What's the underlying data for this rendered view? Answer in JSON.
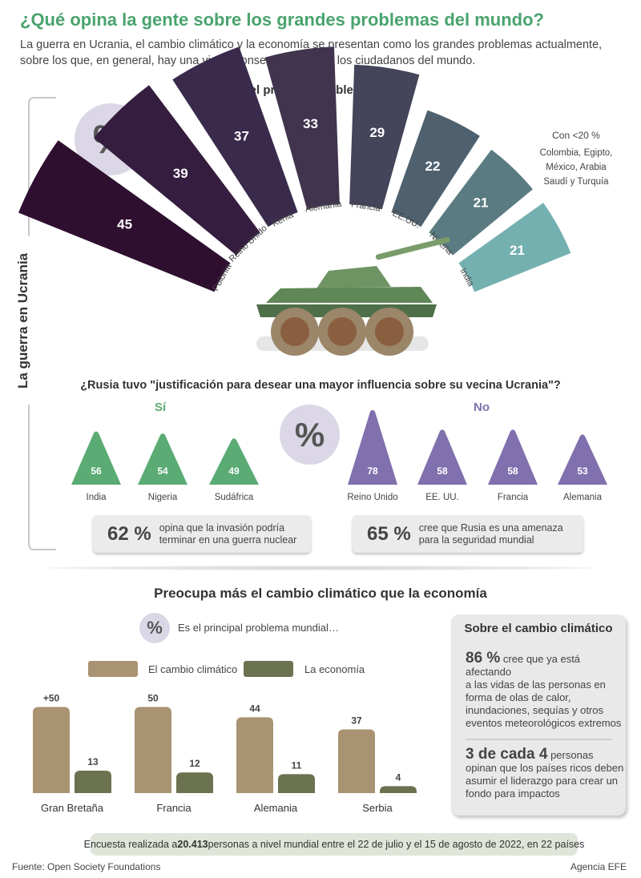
{
  "header": {
    "title": "¿Qué opina la gente sobre los grandes problemas del mundo?",
    "subtitle": "La guerra en Ucrania, el cambio climático y la economía se presentan como los grandes problemas actualmente, sobre los que, en general, hay una visión consensuada entre los ciudadanos del mundo."
  },
  "side_label": "La guerra en Ucrania",
  "percent_symbol": "%",
  "colors": {
    "title": "#4aa36e",
    "si": "#5aab74",
    "no": "#8070ad",
    "climate": "#a99373",
    "economy": "#6b7250",
    "tank_body": "#5f8757",
    "tank_wheel": "#9b8669"
  },
  "chart_data": [
    {
      "type": "bar",
      "title": "Es el principal problema global",
      "categories": [
        "Polonia",
        "Reino Unido",
        "Kenia",
        "Alemania",
        "Francia",
        "EE.UU.",
        "Nigeria",
        "India"
      ],
      "values": [
        45,
        39,
        37,
        33,
        29,
        22,
        21,
        21
      ],
      "colors": [
        "#2f0f30",
        "#341d3e",
        "#3a2b4c",
        "#41344f",
        "#44445a",
        "#4f616e",
        "#5b7b82",
        "#75b0b0"
      ],
      "note_title": "Con <20 %",
      "note_lines": [
        "Colombia, Egipto,",
        "México, Arabia",
        "Saudí y Turquía"
      ]
    },
    {
      "type": "bar",
      "title": "¿Rusia tuvo \"justificación para desear una mayor influencia sobre su vecina Ucrania\"?",
      "groups": [
        {
          "name": "Sí",
          "categories": [
            "India",
            "Nigeria",
            "Sudáfrica"
          ],
          "values": [
            56,
            54,
            49
          ]
        },
        {
          "name": "No",
          "categories": [
            "Reino Unido",
            "EE. UU.",
            "Francia",
            "Alemania"
          ],
          "values": [
            78,
            58,
            58,
            53
          ]
        }
      ]
    },
    {
      "type": "bar",
      "title": "Preocupa más el cambio climático que la economía",
      "subtitle": "Es el principal problema mundial…",
      "categories": [
        "Gran Bretaña",
        "Francia",
        "Alemania",
        "Serbia"
      ],
      "series": [
        {
          "name": "El cambio climático",
          "values": [
            50,
            50,
            44,
            37
          ],
          "labels": [
            "+50",
            "50",
            "44",
            "37"
          ]
        },
        {
          "name": "La economía",
          "values": [
            13,
            12,
            11,
            4
          ],
          "labels": [
            "13",
            "12",
            "11",
            "4"
          ]
        }
      ]
    }
  ],
  "stats": {
    "nuclear": {
      "value": "62 %",
      "text_line1": "opina que la invasión podría",
      "text_line2": "terminar en una guerra nuclear"
    },
    "threat": {
      "value": "65 %",
      "text_line1": "cree que Rusia es una amenaza",
      "text_line2": "para la seguridad mundial"
    }
  },
  "climate_box": {
    "title": "Sobre el cambio climático",
    "item1_value": "86 %",
    "item1_text_a": " cree que ya está afectando",
    "item1_lines": [
      "a las vidas de las personas en",
      "forma de olas de calor,",
      "inundaciones, sequías y otros",
      "eventos meteorológicos extremos"
    ],
    "item2_value": "3 de cada 4",
    "item2_text_a": " personas",
    "item2_lines": [
      "opinan que los países ricos deben",
      "asumir el liderazgo para crear un",
      "fondo para impactos"
    ]
  },
  "footer": {
    "note_prefix": "Encuesta realizada a ",
    "note_bold": "20.413",
    "note_suffix": " personas a nivel mundial entre el 22 de julio y el 15 de agosto de 2022, en 22 países",
    "source": "Fuente: Open Society Foundations",
    "agency": "Agencia EFE"
  }
}
